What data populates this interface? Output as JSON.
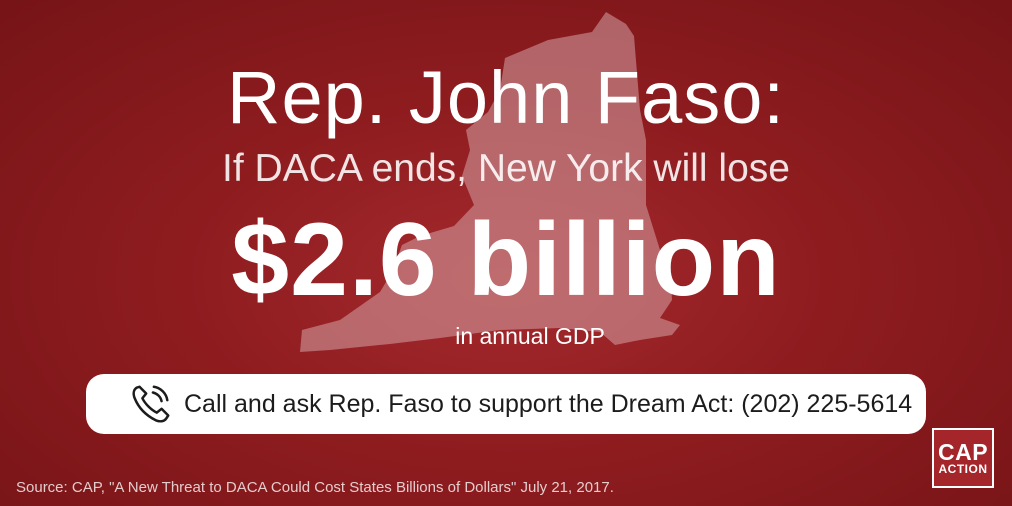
{
  "headline": "Rep. John Faso:",
  "subline": "If DACA ends, New York will lose",
  "amount": "$2.6 billion",
  "unit": "in annual GDP",
  "cta": {
    "icon": "phone-icon",
    "text": "Call and ask Rep. Faso to support the Dream Act: (202) 225-5614"
  },
  "source": "Source: CAP, \"A New Threat to DACA Could Cost States Billions of Dollars\" July 21, 2017.",
  "logo": {
    "line1": "CAP",
    "line2": "ACTION"
  },
  "colors": {
    "background": "#8e1c1f",
    "map": "#c98a8c",
    "button": "#ffffff",
    "logo_bg": "#a4252a"
  }
}
